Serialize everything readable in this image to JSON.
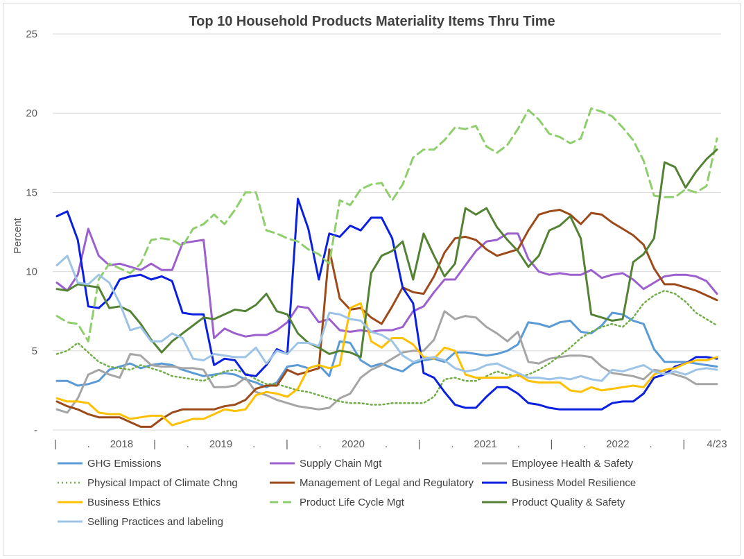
{
  "chart_data": {
    "type": "line",
    "title": "Top 10 Household Products Materiality Items Thru Time",
    "ylabel": "Percent",
    "xlabel": "",
    "ylim": [
      0,
      25
    ],
    "yticks": [
      "-",
      "5",
      "10",
      "15",
      "20",
      "25"
    ],
    "x_tick_labels": [
      "|",
      ".",
      "2018",
      "|",
      ".",
      "2019",
      ".",
      "|",
      ".",
      "2020",
      ".",
      "|",
      ".",
      "2021",
      ".",
      "|",
      ".",
      "2022",
      ".",
      "|",
      "4/23"
    ],
    "x_points": 64,
    "grid": "horizontal",
    "legend_position": "bottom",
    "series": [
      {
        "name": "GHG Emissions",
        "color": "#5b9bd5",
        "dash": "solid",
        "values": [
          3.1,
          3.1,
          2.8,
          2.9,
          3.1,
          3.8,
          4.0,
          4.2,
          3.9,
          4.1,
          4.2,
          4.1,
          3.8,
          3.6,
          3.4,
          3.5,
          3.6,
          3.5,
          3.2,
          3.0,
          2.7,
          3.0,
          4.0,
          4.1,
          3.9,
          4.1,
          3.4,
          5.6,
          5.5,
          4.4,
          4.0,
          4.2,
          3.9,
          3.7,
          4.2,
          4.4,
          4.5,
          4.3,
          4.9,
          4.9,
          4.8,
          4.7,
          4.8,
          5.0,
          5.4,
          6.8,
          6.7,
          6.5,
          6.8,
          6.9,
          6.2,
          6.1,
          6.6,
          7.4,
          7.3,
          6.9,
          6.7,
          5.1,
          4.3,
          4.3,
          4.3,
          4.2,
          4.1,
          4.0
        ]
      },
      {
        "name": "Supply Chain Mgt",
        "color": "#9c5fce",
        "dash": "solid",
        "values": [
          9.3,
          8.8,
          9.8,
          12.7,
          11.0,
          10.4,
          10.5,
          10.3,
          10.1,
          10.5,
          10.1,
          10.1,
          11.8,
          11.9,
          12.0,
          5.8,
          6.4,
          6.1,
          5.9,
          6.0,
          6.0,
          6.3,
          6.8,
          7.8,
          7.7,
          6.8,
          7.0,
          6.3,
          6.2,
          6.3,
          6.2,
          6.3,
          6.3,
          6.5,
          7.5,
          7.8,
          8.7,
          9.5,
          9.5,
          10.4,
          11.3,
          11.9,
          12.0,
          12.4,
          12.4,
          10.8,
          10.0,
          9.8,
          9.9,
          9.8,
          9.8,
          10.1,
          9.6,
          9.8,
          9.9,
          9.5,
          8.9,
          9.3,
          9.7,
          9.8,
          9.8,
          9.7,
          9.4,
          8.6
        ]
      },
      {
        "name": "Employee Health & Safety",
        "color": "#a5a5a5",
        "dash": "solid",
        "values": [
          1.3,
          1.1,
          2.0,
          3.5,
          3.8,
          3.5,
          3.3,
          4.8,
          4.7,
          4.1,
          4.0,
          4.0,
          3.9,
          3.9,
          3.8,
          2.7,
          2.7,
          2.8,
          3.3,
          2.4,
          2.2,
          1.9,
          1.7,
          1.5,
          1.4,
          1.3,
          1.4,
          2.0,
          2.3,
          3.3,
          3.8,
          4.1,
          4.5,
          4.9,
          5.0,
          5.0,
          5.7,
          7.5,
          7.0,
          7.2,
          7.1,
          6.5,
          6.1,
          5.6,
          6.2,
          4.3,
          4.2,
          4.5,
          4.6,
          4.7,
          4.7,
          4.6,
          4.0,
          3.6,
          3.5,
          3.4,
          3.2,
          3.8,
          3.7,
          3.5,
          3.3,
          2.9,
          2.9,
          2.9
        ]
      },
      {
        "name": "Physical Impact of Climate Chng",
        "color": "#70ad47",
        "dash": "dotted",
        "values": [
          4.8,
          5.0,
          5.5,
          4.9,
          4.3,
          4.0,
          3.9,
          3.8,
          4.1,
          3.9,
          3.7,
          3.4,
          3.3,
          3.2,
          3.1,
          3.4,
          3.7,
          3.8,
          3.6,
          3.2,
          2.9,
          2.9,
          2.7,
          2.5,
          2.4,
          2.2,
          2.0,
          1.8,
          1.7,
          1.7,
          1.6,
          1.6,
          1.7,
          1.7,
          1.7,
          1.7,
          2.1,
          3.2,
          3.3,
          3.1,
          3.1,
          3.4,
          3.7,
          3.5,
          3.4,
          3.5,
          3.8,
          4.2,
          4.7,
          5.2,
          5.8,
          6.2,
          6.5,
          6.7,
          6.5,
          7.1,
          8.0,
          8.5,
          8.8,
          8.6,
          8.1,
          7.4,
          7.0,
          6.6
        ]
      },
      {
        "name": "Management of Legal and Regulatory",
        "color": "#9c4a1a",
        "dash": "solid",
        "values": [
          1.8,
          1.5,
          1.3,
          1.0,
          0.8,
          0.8,
          0.8,
          0.5,
          0.2,
          0.2,
          0.7,
          1.1,
          1.3,
          1.3,
          1.3,
          1.3,
          1.5,
          1.6,
          1.9,
          2.6,
          2.8,
          2.8,
          3.8,
          3.5,
          3.7,
          3.9,
          11.4,
          8.3,
          7.6,
          7.7,
          7.1,
          6.7,
          7.8,
          9.0,
          8.7,
          8.6,
          9.7,
          11.2,
          12.1,
          12.2,
          12.0,
          11.4,
          11.0,
          11.2,
          11.4,
          12.6,
          13.6,
          13.8,
          13.9,
          13.6,
          13.0,
          13.7,
          13.6,
          13.1,
          12.7,
          12.3,
          11.7,
          10.2,
          9.2,
          9.2,
          9.0,
          8.8,
          8.5,
          8.2
        ]
      },
      {
        "name": "Business Model Resilience",
        "color": "#0a1fe0",
        "dash": "solid",
        "values": [
          13.5,
          13.8,
          12.0,
          7.8,
          7.7,
          8.3,
          9.5,
          9.7,
          9.8,
          9.5,
          9.7,
          9.4,
          7.4,
          7.3,
          7.3,
          4.1,
          4.5,
          4.4,
          3.5,
          3.4,
          4.1,
          5.1,
          4.8,
          14.6,
          12.7,
          9.5,
          12.4,
          12.2,
          12.9,
          12.6,
          13.4,
          13.4,
          12.1,
          9.0,
          8.0,
          3.6,
          3.3,
          2.4,
          1.6,
          1.4,
          1.4,
          2.1,
          2.7,
          2.7,
          2.3,
          1.7,
          1.6,
          1.4,
          1.3,
          1.3,
          1.3,
          1.3,
          1.3,
          1.7,
          1.8,
          1.8,
          2.3,
          3.3,
          3.5,
          4.0,
          4.2,
          4.6,
          4.6,
          4.5
        ]
      },
      {
        "name": "Business Ethics",
        "color": "#ffc000",
        "dash": "solid",
        "values": [
          2.0,
          1.8,
          1.8,
          1.7,
          1.1,
          1.0,
          1.0,
          0.7,
          0.8,
          0.9,
          0.9,
          0.3,
          0.5,
          0.7,
          0.7,
          1.0,
          1.3,
          1.2,
          1.3,
          2.2,
          2.4,
          2.3,
          2.1,
          2.6,
          3.9,
          4.1,
          3.9,
          4.1,
          7.7,
          8.0,
          5.6,
          5.2,
          5.8,
          5.8,
          5.4,
          4.6,
          4.5,
          5.2,
          5.0,
          3.5,
          3.3,
          3.3,
          3.3,
          3.3,
          3.5,
          3.1,
          3.0,
          3.0,
          3.0,
          2.5,
          2.4,
          2.7,
          2.5,
          2.6,
          2.7,
          2.8,
          2.7,
          3.5,
          3.8,
          3.9,
          4.2,
          4.4,
          4.4,
          4.6
        ]
      },
      {
        "name": "Product Life Cycle Mgt",
        "color": "#8fce6c",
        "dash": "dashed",
        "values": [
          7.2,
          6.8,
          6.7,
          5.6,
          9.5,
          10.5,
          10.2,
          9.9,
          10.5,
          12.0,
          12.1,
          12.0,
          11.6,
          12.7,
          13.0,
          13.6,
          13.0,
          13.9,
          15.0,
          15.0,
          12.6,
          12.4,
          12.1,
          11.9,
          11.4,
          11.1,
          10.5,
          14.5,
          14.2,
          15.2,
          15.5,
          15.6,
          14.5,
          15.5,
          17.2,
          17.7,
          17.7,
          18.3,
          19.1,
          19.0,
          19.2,
          17.9,
          17.5,
          18.0,
          19.0,
          20.2,
          19.6,
          18.7,
          18.5,
          18.1,
          18.4,
          20.3,
          20.1,
          19.8,
          19.1,
          18.3,
          17.0,
          14.8,
          14.7,
          14.7,
          15.2,
          15.0,
          15.4,
          18.4
        ]
      },
      {
        "name": "Product Quality & Safety",
        "color": "#548235",
        "dash": "solid",
        "values": [
          8.9,
          8.8,
          9.2,
          9.1,
          9.0,
          7.7,
          7.8,
          7.5,
          6.7,
          5.7,
          4.9,
          5.6,
          6.1,
          6.6,
          7.1,
          7.0,
          7.3,
          7.6,
          7.5,
          7.9,
          8.6,
          7.5,
          7.3,
          6.1,
          5.5,
          5.2,
          4.8,
          5.0,
          4.9,
          4.6,
          9.9,
          11.0,
          11.3,
          11.9,
          9.5,
          12.4,
          11.0,
          9.7,
          10.5,
          14.0,
          13.6,
          14.0,
          12.8,
          12.0,
          11.3,
          10.3,
          11.0,
          12.6,
          12.9,
          13.5,
          12.1,
          7.3,
          7.1,
          6.9,
          7.0,
          10.6,
          11.1,
          12.1,
          16.9,
          16.6,
          15.3,
          16.3,
          17.1,
          17.7
        ]
      },
      {
        "name": "Selling Practices and labeling",
        "color": "#9dc3e6",
        "dash": "solid",
        "values": [
          10.4,
          11.0,
          9.3,
          9.2,
          9.8,
          9.3,
          8.0,
          6.3,
          6.5,
          5.6,
          5.6,
          6.1,
          5.8,
          4.5,
          4.4,
          4.8,
          4.7,
          4.6,
          4.6,
          5.2,
          4.2,
          5.0,
          4.8,
          5.5,
          5.5,
          5.3,
          7.4,
          7.3,
          7.0,
          6.9,
          6.2,
          6.0,
          5.6,
          4.7,
          4.3,
          4.5,
          4.6,
          4.4,
          3.9,
          3.7,
          3.8,
          4.1,
          4.2,
          3.9,
          3.6,
          3.3,
          3.3,
          3.2,
          3.3,
          3.2,
          3.4,
          3.2,
          3.1,
          3.8,
          3.7,
          3.9,
          4.1,
          3.7,
          3.5,
          3.7,
          3.5,
          3.8,
          3.9,
          3.8
        ]
      }
    ]
  }
}
